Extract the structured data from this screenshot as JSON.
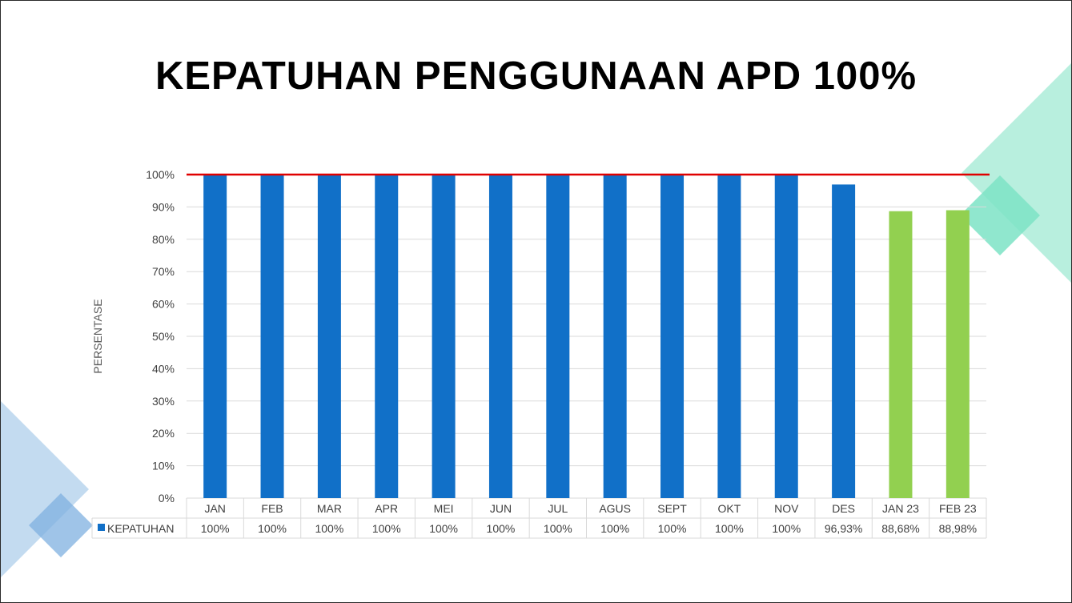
{
  "slide": {
    "title": "KEPATUHAN PENGGUNAAN APD 100%"
  },
  "colors": {
    "bar_blue": "#1170C8",
    "bar_green": "#92D050",
    "target_line": "#E00000",
    "gridline": "#D9D9D9",
    "axis_text": "#404040",
    "deco_blue": "#BDD7EE",
    "deco_blue_dark": "#7FB0E0",
    "deco_teal": "#B4EEDC",
    "deco_teal_dark": "#7DE3C6"
  },
  "chart_data": {
    "type": "bar",
    "ylabel": "PERSENTASE",
    "ylim": [
      0,
      100
    ],
    "yticks": [
      "0%",
      "10%",
      "20%",
      "30%",
      "40%",
      "50%",
      "60%",
      "70%",
      "80%",
      "90%",
      "100%"
    ],
    "grid": true,
    "target_line": 100,
    "categories": [
      "JAN",
      "FEB",
      "MAR",
      "APR",
      "MEI",
      "JUN",
      "JUL",
      "AGUS",
      "SEPT",
      "OKT",
      "NOV",
      "DES",
      "JAN 23",
      "FEB 23"
    ],
    "series": [
      {
        "name": "KEPATUHAN",
        "values": [
          100,
          100,
          100,
          100,
          100,
          100,
          100,
          100,
          100,
          100,
          100,
          96.93,
          88.68,
          88.98
        ],
        "value_labels": [
          "100%",
          "100%",
          "100%",
          "100%",
          "100%",
          "100%",
          "100%",
          "100%",
          "100%",
          "100%",
          "100%",
          "96,93%",
          "88,68%",
          "88,98%"
        ],
        "bar_colors": [
          "#1170C8",
          "#1170C8",
          "#1170C8",
          "#1170C8",
          "#1170C8",
          "#1170C8",
          "#1170C8",
          "#1170C8",
          "#1170C8",
          "#1170C8",
          "#1170C8",
          "#1170C8",
          "#92D050",
          "#92D050"
        ]
      }
    ],
    "data_table": true,
    "legend_key_color": "#1170C8"
  }
}
